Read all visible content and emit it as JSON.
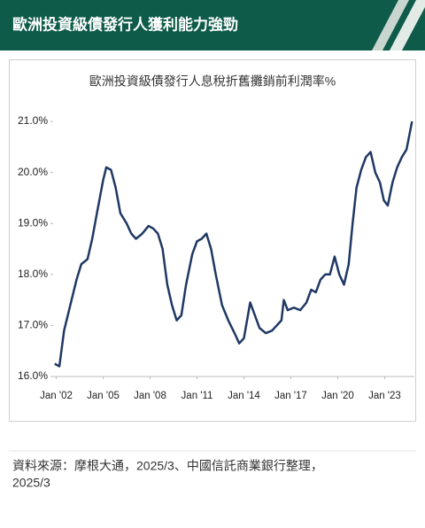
{
  "header": {
    "title": "歐洲投資級債發行人獲利能力強勁"
  },
  "chart_data": {
    "type": "line",
    "title": "歐洲投資級債發行人息稅折舊攤銷前利潤率%",
    "x": [
      2001.9,
      2002.2,
      2002.5,
      2002.9,
      2003.3,
      2003.6,
      2004.0,
      2004.3,
      2004.6,
      2005.0,
      2005.2,
      2005.5,
      2005.8,
      2006.1,
      2006.5,
      2006.8,
      2007.1,
      2007.5,
      2007.9,
      2008.2,
      2008.5,
      2008.8,
      2009.1,
      2009.4,
      2009.7,
      2010.0,
      2010.3,
      2010.7,
      2011.0,
      2011.3,
      2011.6,
      2011.9,
      2012.2,
      2012.6,
      2013.0,
      2013.4,
      2013.7,
      2014.0,
      2014.4,
      2014.7,
      2015.0,
      2015.4,
      2015.8,
      2016.1,
      2016.4,
      2016.55,
      2016.8,
      2017.2,
      2017.6,
      2018.0,
      2018.3,
      2018.6,
      2018.9,
      2019.2,
      2019.5,
      2019.8,
      2020.1,
      2020.4,
      2020.7,
      2020.95,
      2021.2,
      2021.5,
      2021.8,
      2022.1,
      2022.4,
      2022.7,
      2022.95,
      2023.2,
      2023.5,
      2023.8,
      2024.1,
      2024.4,
      2024.75
    ],
    "series": [
      {
        "color": "#1f3864",
        "values": [
          16.25,
          16.2,
          16.9,
          17.4,
          17.9,
          18.2,
          18.3,
          18.7,
          19.2,
          19.85,
          20.1,
          20.05,
          19.7,
          19.2,
          19.0,
          18.8,
          18.7,
          18.8,
          18.95,
          18.9,
          18.8,
          18.5,
          17.8,
          17.4,
          17.1,
          17.2,
          17.8,
          18.4,
          18.65,
          18.7,
          18.8,
          18.5,
          18.0,
          17.4,
          17.1,
          16.85,
          16.65,
          16.75,
          17.45,
          17.2,
          16.95,
          16.85,
          16.9,
          17.0,
          17.1,
          17.5,
          17.3,
          17.35,
          17.3,
          17.45,
          17.7,
          17.65,
          17.9,
          18.0,
          18.0,
          18.35,
          18.0,
          17.8,
          18.2,
          19.0,
          19.7,
          20.05,
          20.3,
          20.4,
          20.0,
          19.8,
          19.45,
          19.35,
          19.8,
          20.1,
          20.3,
          20.45,
          21.0
        ]
      }
    ],
    "xlim": [
      2001.8,
      2024.9
    ],
    "xticks": [
      {
        "value": 2002,
        "label": "Jan '02"
      },
      {
        "value": 2005,
        "label": "Jan '05"
      },
      {
        "value": 2008,
        "label": "Jan '08"
      },
      {
        "value": 2011,
        "label": "Jan '11"
      },
      {
        "value": 2014,
        "label": "Jan '14"
      },
      {
        "value": 2017,
        "label": "Jan '17"
      },
      {
        "value": 2020,
        "label": "Jan '20"
      },
      {
        "value": 2023,
        "label": "Jan '23"
      }
    ],
    "ylim": [
      16,
      21
    ],
    "yticks": [
      {
        "value": 16,
        "label": "16.0%"
      },
      {
        "value": 17,
        "label": "17.0%"
      },
      {
        "value": 18,
        "label": "18.0%"
      },
      {
        "value": 19,
        "label": "19.0%"
      },
      {
        "value": 20,
        "label": "20.0%"
      },
      {
        "value": 21,
        "label": "21.0%"
      }
    ]
  },
  "source": {
    "line1": "資料來源：摩根大通，2025/3、中國信託商業銀行整理，",
    "line2": "2025/3"
  }
}
